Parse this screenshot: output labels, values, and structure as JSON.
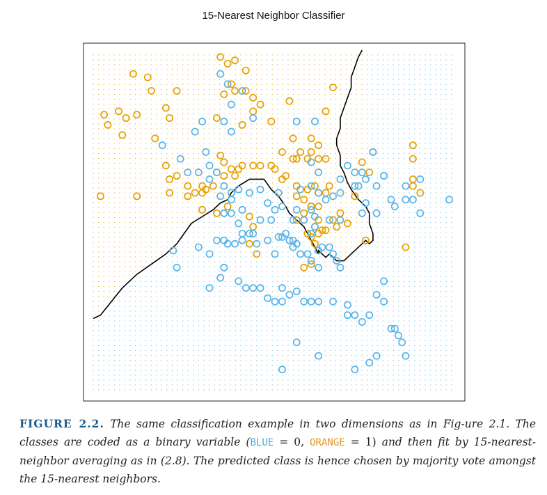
{
  "chart_data": {
    "type": "scatter",
    "title": "15-Nearest Neighbor Classifier",
    "xlabel": "",
    "ylabel": "",
    "xlim": [
      0,
      100
    ],
    "ylim": [
      0,
      100
    ],
    "grid": false,
    "legend": "none",
    "background_grid": "dotted, colored by predicted class",
    "colors": {
      "blue": "#56b4e9",
      "orange": "#e69f00",
      "boundary": "#000000"
    },
    "series": [
      {
        "class": "ORANGE",
        "points": [
          [
            35,
            98
          ],
          [
            37,
            96
          ],
          [
            39,
            97
          ],
          [
            42,
            94
          ],
          [
            38,
            90
          ],
          [
            39,
            88
          ],
          [
            42,
            88
          ],
          [
            36,
            87
          ],
          [
            44,
            86
          ],
          [
            46,
            84
          ],
          [
            44,
            82
          ],
          [
            34,
            80
          ],
          [
            41,
            78
          ],
          [
            49,
            79
          ],
          [
            66,
            89
          ],
          [
            54,
            85
          ],
          [
            64,
            82
          ],
          [
            11,
            93
          ],
          [
            15,
            92
          ],
          [
            16,
            88
          ],
          [
            23,
            88
          ],
          [
            3,
            81
          ],
          [
            4,
            78
          ],
          [
            7,
            82
          ],
          [
            9,
            80
          ],
          [
            12,
            81
          ],
          [
            20,
            83
          ],
          [
            21,
            80
          ],
          [
            8,
            75
          ],
          [
            17,
            74
          ],
          [
            35,
            69
          ],
          [
            36,
            67
          ],
          [
            38,
            65
          ],
          [
            40,
            65
          ],
          [
            41,
            66
          ],
          [
            44,
            66
          ],
          [
            46,
            66
          ],
          [
            49,
            66
          ],
          [
            34,
            64
          ],
          [
            36,
            63
          ],
          [
            39,
            63
          ],
          [
            30,
            60
          ],
          [
            31,
            59
          ],
          [
            33,
            60
          ],
          [
            23,
            63
          ],
          [
            20,
            66
          ],
          [
            21,
            62
          ],
          [
            26,
            60
          ],
          [
            28,
            58
          ],
          [
            2,
            57
          ],
          [
            12,
            57
          ],
          [
            21,
            58
          ],
          [
            26,
            57
          ],
          [
            30,
            58
          ],
          [
            55,
            74
          ],
          [
            57,
            70
          ],
          [
            56,
            68
          ],
          [
            60,
            70
          ],
          [
            62,
            72
          ],
          [
            60,
            74
          ],
          [
            52,
            70
          ],
          [
            55,
            68
          ],
          [
            59,
            68
          ],
          [
            62,
            68
          ],
          [
            64,
            68
          ],
          [
            56,
            60
          ],
          [
            59,
            59
          ],
          [
            61,
            60
          ],
          [
            64,
            58
          ],
          [
            53,
            63
          ],
          [
            56,
            57
          ],
          [
            58,
            56
          ],
          [
            60,
            54
          ],
          [
            62,
            54
          ],
          [
            62,
            58
          ],
          [
            65,
            60
          ],
          [
            58,
            52
          ],
          [
            56,
            50
          ],
          [
            62,
            50
          ],
          [
            59,
            46
          ],
          [
            61,
            48
          ],
          [
            63,
            47
          ],
          [
            67,
            48
          ],
          [
            60,
            45
          ],
          [
            61,
            43
          ],
          [
            62,
            46
          ],
          [
            64,
            47
          ],
          [
            66,
            50
          ],
          [
            70,
            49
          ],
          [
            68,
            52
          ],
          [
            72,
            57
          ],
          [
            77,
            70
          ],
          [
            74,
            67
          ],
          [
            50,
            65
          ],
          [
            52,
            62
          ],
          [
            43,
            51
          ],
          [
            44,
            48
          ],
          [
            37,
            54
          ],
          [
            36,
            52
          ],
          [
            30,
            53
          ],
          [
            45,
            40
          ],
          [
            58,
            36
          ],
          [
            60,
            37
          ],
          [
            60,
            54
          ],
          [
            75,
            44
          ],
          [
            76,
            64
          ],
          [
            88,
            60
          ],
          [
            88,
            62
          ],
          [
            88,
            68
          ],
          [
            88,
            72
          ],
          [
            90,
            58
          ],
          [
            86,
            42
          ],
          [
            43,
            43
          ],
          [
            34,
            52
          ]
        ]
      },
      {
        "class": "BLUE",
        "points": [
          [
            35,
            93
          ],
          [
            37,
            90
          ],
          [
            41,
            88
          ],
          [
            38,
            84
          ],
          [
            36,
            79
          ],
          [
            44,
            80
          ],
          [
            56,
            79
          ],
          [
            61,
            79
          ],
          [
            30,
            79
          ],
          [
            28,
            76
          ],
          [
            38,
            76
          ],
          [
            31,
            70
          ],
          [
            32,
            66
          ],
          [
            19,
            72
          ],
          [
            24,
            68
          ],
          [
            26,
            64
          ],
          [
            29,
            64
          ],
          [
            32,
            62
          ],
          [
            34,
            64
          ],
          [
            36,
            60
          ],
          [
            38,
            58
          ],
          [
            35,
            57
          ],
          [
            38,
            56
          ],
          [
            40,
            59
          ],
          [
            43,
            58
          ],
          [
            46,
            59
          ],
          [
            48,
            55
          ],
          [
            50,
            53
          ],
          [
            49,
            50
          ],
          [
            51,
            58
          ],
          [
            52,
            54
          ],
          [
            55,
            50
          ],
          [
            58,
            50
          ],
          [
            56,
            53
          ],
          [
            60,
            53
          ],
          [
            61,
            51
          ],
          [
            61,
            48
          ],
          [
            65,
            50
          ],
          [
            68,
            50
          ],
          [
            57,
            59
          ],
          [
            60,
            60
          ],
          [
            62,
            58
          ],
          [
            64,
            56
          ],
          [
            66,
            57
          ],
          [
            68,
            58
          ],
          [
            62,
            64
          ],
          [
            60,
            67
          ],
          [
            72,
            60
          ],
          [
            73,
            60
          ],
          [
            74,
            64
          ],
          [
            75,
            62
          ],
          [
            78,
            60
          ],
          [
            70,
            66
          ],
          [
            72,
            64
          ],
          [
            68,
            62
          ],
          [
            75,
            55
          ],
          [
            74,
            52
          ],
          [
            78,
            52
          ],
          [
            80,
            63
          ],
          [
            82,
            56
          ],
          [
            83,
            54
          ],
          [
            77,
            70
          ],
          [
            80,
            63
          ],
          [
            86,
            60
          ],
          [
            86,
            56
          ],
          [
            88,
            56
          ],
          [
            90,
            62
          ],
          [
            90,
            52
          ],
          [
            98,
            56
          ],
          [
            34,
            44
          ],
          [
            36,
            44
          ],
          [
            36,
            52
          ],
          [
            38,
            52
          ],
          [
            41,
            53
          ],
          [
            40,
            49
          ],
          [
            41,
            46
          ],
          [
            41,
            44
          ],
          [
            43,
            46
          ],
          [
            44,
            46
          ],
          [
            45,
            43
          ],
          [
            46,
            50
          ],
          [
            48,
            44
          ],
          [
            50,
            40
          ],
          [
            51,
            45
          ],
          [
            52,
            45
          ],
          [
            54,
            44
          ],
          [
            53,
            46
          ],
          [
            55,
            44
          ],
          [
            55,
            42
          ],
          [
            56,
            43
          ],
          [
            57,
            40
          ],
          [
            59,
            40
          ],
          [
            60,
            38
          ],
          [
            62,
            36
          ],
          [
            62,
            41
          ],
          [
            60,
            46
          ],
          [
            63,
            42
          ],
          [
            65,
            42
          ],
          [
            66,
            40
          ],
          [
            67,
            38
          ],
          [
            68,
            36
          ],
          [
            29,
            42
          ],
          [
            32,
            40
          ],
          [
            37,
            43
          ],
          [
            39,
            43
          ],
          [
            22,
            41
          ],
          [
            23,
            36
          ],
          [
            32,
            30
          ],
          [
            35,
            33
          ],
          [
            36,
            36
          ],
          [
            40,
            32
          ],
          [
            42,
            30
          ],
          [
            44,
            30
          ],
          [
            46,
            30
          ],
          [
            48,
            27
          ],
          [
            50,
            26
          ],
          [
            52,
            26
          ],
          [
            52,
            30
          ],
          [
            54,
            28
          ],
          [
            56,
            29
          ],
          [
            58,
            26
          ],
          [
            60,
            26
          ],
          [
            62,
            26
          ],
          [
            66,
            26
          ],
          [
            70,
            22
          ],
          [
            70,
            25
          ],
          [
            72,
            22
          ],
          [
            74,
            20
          ],
          [
            76,
            22
          ],
          [
            78,
            28
          ],
          [
            80,
            26
          ],
          [
            80,
            32
          ],
          [
            82,
            18
          ],
          [
            83,
            18
          ],
          [
            84,
            16
          ],
          [
            85,
            14
          ],
          [
            86,
            10
          ],
          [
            78,
            10
          ],
          [
            76,
            8
          ],
          [
            72,
            6
          ],
          [
            62,
            10
          ],
          [
            56,
            14
          ],
          [
            52,
            6
          ]
        ]
      }
    ],
    "decision_boundary": [
      [
        0,
        21
      ],
      [
        2,
        22
      ],
      [
        5,
        26
      ],
      [
        8,
        30
      ],
      [
        12,
        34
      ],
      [
        16,
        37
      ],
      [
        20,
        40
      ],
      [
        23,
        43
      ],
      [
        25,
        46
      ],
      [
        27,
        49
      ],
      [
        30,
        51
      ],
      [
        33,
        53
      ],
      [
        35,
        55
      ],
      [
        37,
        56
      ],
      [
        38,
        58
      ],
      [
        40,
        60
      ],
      [
        43,
        62
      ],
      [
        45,
        62
      ],
      [
        47,
        62
      ],
      [
        49,
        59
      ],
      [
        51,
        57
      ],
      [
        53,
        54
      ],
      [
        54,
        52
      ],
      [
        56,
        50
      ],
      [
        58,
        48
      ],
      [
        59,
        46
      ],
      [
        60,
        44
      ],
      [
        61,
        42
      ],
      [
        62,
        40
      ],
      [
        62,
        41
      ],
      [
        63,
        40
      ],
      [
        64,
        39
      ],
      [
        65,
        40
      ],
      [
        66,
        39
      ],
      [
        67,
        38
      ],
      [
        68,
        38
      ],
      [
        69,
        38
      ],
      [
        70,
        39
      ],
      [
        71,
        40
      ],
      [
        72,
        41
      ],
      [
        73,
        42
      ],
      [
        74,
        43
      ],
      [
        75,
        44
      ],
      [
        76,
        43
      ],
      [
        77,
        44
      ],
      [
        77,
        46
      ],
      [
        76,
        49
      ],
      [
        76,
        52
      ],
      [
        75,
        54
      ],
      [
        73,
        56
      ],
      [
        71,
        59
      ],
      [
        70,
        61
      ],
      [
        69,
        64
      ],
      [
        68,
        66
      ],
      [
        68,
        69
      ],
      [
        67,
        72
      ],
      [
        67,
        74
      ],
      [
        68,
        77
      ],
      [
        68,
        80
      ],
      [
        69,
        83
      ],
      [
        70,
        86
      ],
      [
        71,
        89
      ],
      [
        71,
        92
      ],
      [
        72,
        95
      ],
      [
        73,
        98
      ],
      [
        74,
        100
      ]
    ]
  },
  "caption": {
    "label": "FIGURE 2.2.",
    "text_1": "The same classification example in two dimensions as in Fig-ure 2.1. The classes are coded as a binary variable (",
    "blue_word": "BLUE",
    "eq_1": " = 0, ",
    "orange_word": "ORANGE",
    "eq_2": " = 1)",
    "text_2": " and then fit by 15-nearest-neighbor averaging as in (2.8). The predicted class is hence chosen by majority vote amongst the 15-nearest neighbors."
  }
}
